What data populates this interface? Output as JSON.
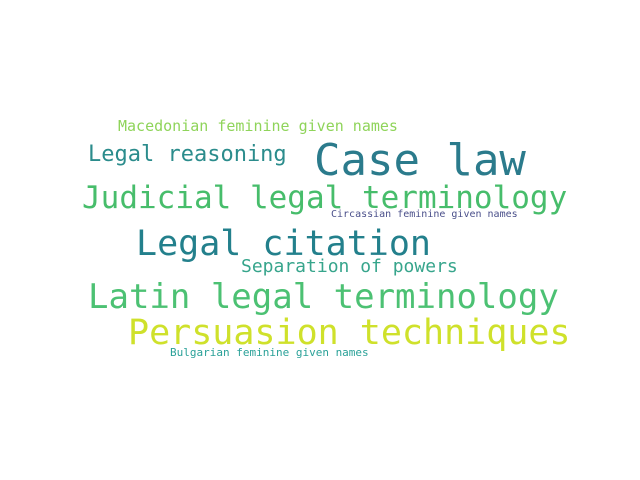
{
  "words": [
    {
      "text": "Case law",
      "color": "#2b7b8c"
    },
    {
      "text": "Macedonian feminine given names",
      "color": "#8fd45a"
    },
    {
      "text": "Legal reasoning",
      "color": "#2b8c8c"
    },
    {
      "text": "Judicial legal terminology",
      "color": "#47bd6b"
    },
    {
      "text": "Circassian feminine given names",
      "color": "#4a4f8a"
    },
    {
      "text": "Legal citation",
      "color": "#23808c"
    },
    {
      "text": "Separation of powers",
      "color": "#37a58c"
    },
    {
      "text": "Latin legal terminology",
      "color": "#4cc173"
    },
    {
      "text": "Persuasion techniques",
      "color": "#cfe12b"
    },
    {
      "text": "Bulgarian feminine given names",
      "color": "#2aa198"
    }
  ]
}
